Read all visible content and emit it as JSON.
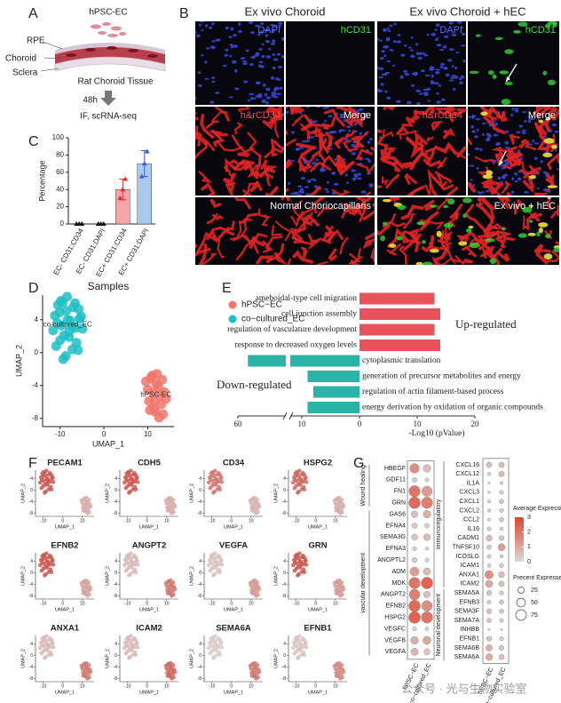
{
  "panel_a": {
    "letter": "A",
    "cell_label": "hPSC-EC",
    "layers": [
      "RPE",
      "Choroid",
      "Sclera"
    ],
    "tissue": "Rat Choroid Tissue",
    "time": "48h",
    "assay": "IF, scRNA-seq"
  },
  "panel_b": {
    "letter": "B",
    "headers": [
      "Ex vivo Choroid",
      "Ex vivo Choroid + hEC"
    ],
    "tiles": [
      {
        "label": "DAPI",
        "label_color": "#5a6cff",
        "layers": [
          "blue"
        ]
      },
      {
        "label": "hCD31",
        "label_color": "#3ddc3d",
        "layers": []
      },
      {
        "label": "DAPI",
        "label_color": "#5a6cff",
        "layers": [
          "blue"
        ]
      },
      {
        "label": "hCD31",
        "label_color": "#3ddc3d",
        "layers": [
          "green"
        ]
      },
      {
        "label": "h&rCD34",
        "label_color": "#ff4a4a",
        "layers": [
          "red"
        ]
      },
      {
        "label": "Merge",
        "label_color": "#ffffff",
        "layers": [
          "blue",
          "red"
        ]
      },
      {
        "label": "h&rCD34",
        "label_color": "#ff4a4a",
        "layers": [
          "red"
        ]
      },
      {
        "label": "Merge",
        "label_color": "#ffffff",
        "layers": [
          "blue",
          "red",
          "yellow"
        ]
      },
      {
        "label": "Normal Choriocapillaris",
        "label_color": "#ffffff",
        "layers": [
          "red"
        ]
      },
      {
        "label": "Ex vivo + hEC",
        "label_color": "#ffffff",
        "layers": [
          "red",
          "yellow",
          "green"
        ]
      }
    ]
  },
  "chart_data": [
    {
      "type": "bar",
      "panel": "C",
      "ylabel": "Percentage",
      "categories": [
        "EC- CD31:CD34",
        "EC- CD31:DAPI",
        "EC+ CD31:CD34",
        "EC+ CD31:DAPI"
      ],
      "values": [
        0,
        0,
        40,
        70
      ],
      "errors": [
        0,
        0,
        12,
        15
      ],
      "points": [
        [
          0,
          0,
          0
        ],
        [
          0,
          0,
          0
        ],
        [
          30,
          40,
          52
        ],
        [
          55,
          70,
          84
        ]
      ],
      "colors": [
        "#f4a5a5",
        "#f4a5a5",
        "#f4a5a5",
        "#a9c9ee"
      ],
      "point_colors": [
        "#111111",
        "#111111",
        "#e03030",
        "#3a5fd0"
      ],
      "ylim": [
        0,
        100
      ],
      "yticks": [
        0,
        20,
        40,
        60,
        80,
        100
      ]
    },
    {
      "type": "scatter",
      "panel": "D",
      "title": "Samples",
      "xlabel": "UMAP_1",
      "ylabel": "UMAP_2",
      "xlim": [
        -14,
        16
      ],
      "ylim": [
        -9,
        7
      ],
      "xticks": [
        -10,
        0,
        10
      ],
      "yticks": [
        -8,
        -4,
        0,
        4
      ],
      "legend": "right",
      "cluster_labels": [
        "hPSC-EC",
        "co-cultured_EC"
      ],
      "series": [
        {
          "name": "hPSC−EC",
          "color": "#f0766b",
          "x": [
            9.6,
            10.3,
            11.0,
            11.7,
            12.4,
            13.1,
            13.8,
            10.0,
            10.7,
            11.4,
            12.1,
            12.8,
            13.5,
            14.2,
            10.5,
            11.2,
            11.9,
            12.6,
            13.3,
            11.5
          ],
          "y": [
            -3.5,
            -5.9,
            -2.8,
            -7.2,
            -4.1,
            -6.3,
            -4.8,
            -4.5,
            -3.1,
            -6.8,
            -2.6,
            -5.2,
            -7.5,
            -5.6,
            -7.0,
            -4.9,
            -3.8,
            -7.9,
            -3.3,
            -6.0
          ]
        },
        {
          "name": "co−cultured_EC",
          "color": "#1fbfc4",
          "x": [
            -11.2,
            -10.5,
            -9.8,
            -9.1,
            -8.4,
            -7.7,
            -7.0,
            -6.3,
            -5.6,
            -4.9,
            -11.6,
            -10.9,
            -10.1,
            -9.4,
            -8.7,
            -8.0,
            -7.3,
            -6.6,
            -5.9,
            -5.2,
            -10.7,
            -10.0,
            -9.3,
            -8.6,
            -7.9,
            -7.2,
            -6.5,
            -5.8,
            -9.7,
            -8.3
          ],
          "y": [
            4.5,
            5.8,
            6.3,
            2.1,
            6.8,
            3.9,
            5.5,
            1.2,
            4.1,
            2.9,
            2.7,
            0.8,
            4.9,
            6.1,
            -0.4,
            1.9,
            3.2,
            6.0,
            0.3,
            4.4,
            3.6,
            1.5,
            -0.8,
            5.1,
            2.6,
            0.4,
            3.0,
            5.3,
            3.3,
            4.0
          ]
        }
      ]
    },
    {
      "type": "hbar",
      "panel": "E",
      "xlabel": "-Log10 (pValue)",
      "categories": [
        "ameboidal-type cell migration",
        "cell junction assembly",
        "regulation of vasculature development",
        "response to decreased oxygen levels",
        "cytoplasmic translation",
        "generation of precursor metabolites and energy",
        "regulation of actin filament-based process",
        "energy derivation by oxidation of organic compounds"
      ],
      "values": [
        13,
        14,
        13,
        14,
        -50,
        -9,
        -8,
        -9
      ],
      "color_up": "#e8525a",
      "color_down": "#2ab3a6",
      "annotations": [
        "Up-regulated",
        "Down-regulated"
      ],
      "xlim": [
        -60,
        20
      ],
      "axis_break": -12,
      "xticks": [
        {
          "value": -60,
          "label": "60"
        },
        {
          "value": -10,
          "label": "10"
        },
        0,
        10,
        20
      ]
    },
    {
      "type": "feature_umap",
      "panel": "F",
      "xlabel": "UMAP_1",
      "ylabel": "UMAP_2",
      "xlim": [
        -14,
        16
      ],
      "ylim": [
        -9,
        7
      ],
      "xticks": [
        -10,
        0,
        10
      ],
      "yticks": [
        -8,
        -4,
        0,
        4
      ],
      "colors": [
        "#dcdcdc",
        "#c8372d"
      ],
      "colorlim": [
        0,
        1
      ],
      "genes": [
        {
          "name": "PECAM1",
          "expression": [
            0.3,
            0.8
          ]
        },
        {
          "name": "CDH5",
          "expression": [
            0.3,
            0.8
          ]
        },
        {
          "name": "CD34",
          "expression": [
            0.25,
            0.6
          ]
        },
        {
          "name": "HSPG2",
          "expression": [
            0.3,
            0.7
          ]
        },
        {
          "name": "EFNB2",
          "expression": [
            0.35,
            0.8
          ]
        },
        {
          "name": "ANGPT2",
          "expression": [
            0.6,
            0.2
          ]
        },
        {
          "name": "VEGFA",
          "expression": [
            0.4,
            0.15
          ]
        },
        {
          "name": "GRN",
          "expression": [
            0.4,
            0.8
          ]
        },
        {
          "name": "ANXA1",
          "expression": [
            0.6,
            0.2
          ]
        },
        {
          "name": "ICAM2",
          "expression": [
            0.7,
            0.2
          ]
        },
        {
          "name": "SEMA6A",
          "expression": [
            0.6,
            0.1
          ]
        },
        {
          "name": "EFNB1",
          "expression": [
            0.5,
            0.15
          ]
        }
      ]
    },
    {
      "type": "dotplot",
      "panel": "G",
      "samples": [
        "hPSC−EC",
        "co−cultured_EC"
      ],
      "color_title": "Average Expression",
      "colorlim": [
        0,
        3
      ],
      "color_ticks": [
        0,
        1,
        2,
        3
      ],
      "colors": [
        "#d9d9d9",
        "#e0452c"
      ],
      "size_title": "Precent Expressed",
      "size_ticks": [
        25,
        50,
        75
      ],
      "plots": [
        {
          "groups": [
            {
              "name": "Wound healing",
              "genes": [
                {
                  "gene": "HBEGF",
                  "expression": [
                    1.5,
                    0.5
                  ],
                  "percent": [
                    60,
                    40
                  ]
                },
                {
                  "gene": "GDF11",
                  "expression": [
                    0.3,
                    0.2
                  ],
                  "percent": [
                    15,
                    10
                  ]
                },
                {
                  "gene": "FN1",
                  "expression": [
                    2.0,
                    1.2
                  ],
                  "percent": [
                    85,
                    70
                  ]
                },
                {
                  "gene": "GRN",
                  "expression": [
                    2.2,
                    1.8
                  ],
                  "percent": [
                    90,
                    85
                  ]
                }
              ]
            },
            {
              "name": "vascular development",
              "genes": [
                {
                  "gene": "GAS6",
                  "expression": [
                    0.5,
                    0.8
                  ],
                  "percent": [
                    30,
                    40
                  ]
                },
                {
                  "gene": "EFNA4",
                  "expression": [
                    0.3,
                    0.2
                  ],
                  "percent": [
                    20,
                    15
                  ]
                },
                {
                  "gene": "SEMA3G",
                  "expression": [
                    0.4,
                    0.6
                  ],
                  "percent": [
                    25,
                    30
                  ]
                },
                {
                  "gene": "EFNA3",
                  "expression": [
                    0.2,
                    0.1
                  ],
                  "percent": [
                    12,
                    8
                  ]
                },
                {
                  "gene": "ANGPTL2",
                  "expression": [
                    0.3,
                    0.2
                  ],
                  "percent": [
                    18,
                    12
                  ]
                },
                {
                  "gene": "ADM",
                  "expression": [
                    1.2,
                    0.6
                  ],
                  "percent": [
                    55,
                    35
                  ]
                },
                {
                  "gene": "MDK",
                  "expression": [
                    2.0,
                    2.4
                  ],
                  "percent": [
                    85,
                    90
                  ]
                },
                {
                  "gene": "ANGPT2",
                  "expression": [
                    1.8,
                    0.5
                  ],
                  "percent": [
                    75,
                    30
                  ]
                },
                {
                  "gene": "EFNB2",
                  "expression": [
                    2.2,
                    1.5
                  ],
                  "percent": [
                    90,
                    75
                  ]
                },
                {
                  "gene": "HSPG2",
                  "expression": [
                    2.4,
                    2.0
                  ],
                  "percent": [
                    92,
                    88
                  ]
                },
                {
                  "gene": "VEGFC",
                  "expression": [
                    0.2,
                    0.1
                  ],
                  "percent": [
                    10,
                    8
                  ]
                },
                {
                  "gene": "VEGFB",
                  "expression": [
                    0.8,
                    1.0
                  ],
                  "percent": [
                    40,
                    45
                  ]
                },
                {
                  "gene": "VEGFA",
                  "expression": [
                    0.7,
                    0.4
                  ],
                  "percent": [
                    35,
                    25
                  ]
                }
              ]
            }
          ]
        },
        {
          "groups": [
            {
              "name": "Immunoregulatory",
              "genes": [
                {
                  "gene": "CXCL16",
                  "expression": [
                    0.5,
                    0.6
                  ],
                  "percent": [
                    30,
                    30
                  ]
                },
                {
                  "gene": "CXCL12",
                  "expression": [
                    0.2,
                    0.6
                  ],
                  "percent": [
                    10,
                    30
                  ]
                },
                {
                  "gene": "IL1A",
                  "expression": [
                    0.1,
                    0.2
                  ],
                  "percent": [
                    5,
                    10
                  ]
                },
                {
                  "gene": "CXCL3",
                  "expression": [
                    0.1,
                    0.3
                  ],
                  "percent": [
                    6,
                    15
                  ]
                },
                {
                  "gene": "CXCL1",
                  "expression": [
                    0.2,
                    0.4
                  ],
                  "percent": [
                    10,
                    20
                  ]
                },
                {
                  "gene": "CXCL2",
                  "expression": [
                    0.2,
                    0.3
                  ],
                  "percent": [
                    10,
                    15
                  ]
                },
                {
                  "gene": "CCL2",
                  "expression": [
                    0.1,
                    0.4
                  ],
                  "percent": [
                    8,
                    20
                  ]
                },
                {
                  "gene": "IL16",
                  "expression": [
                    0.3,
                    0.2
                  ],
                  "percent": [
                    15,
                    10
                  ]
                },
                {
                  "gene": "CADM1",
                  "expression": [
                    0.6,
                    0.4
                  ],
                  "percent": [
                    35,
                    25
                  ]
                },
                {
                  "gene": "TNFSF10",
                  "expression": [
                    0.4,
                    1.2
                  ],
                  "percent": [
                    20,
                    50
                  ]
                },
                {
                  "gene": "ICOSLG",
                  "expression": [
                    0.3,
                    0.2
                  ],
                  "percent": [
                    15,
                    10
                  ]
                },
                {
                  "gene": "ICAM1",
                  "expression": [
                    0.2,
                    0.3
                  ],
                  "percent": [
                    12,
                    18
                  ]
                },
                {
                  "gene": "ANXA1",
                  "expression": [
                    1.5,
                    0.6
                  ],
                  "percent": [
                    65,
                    35
                  ]
                },
                {
                  "gene": "ICAM2",
                  "expression": [
                    1.0,
                    0.5
                  ],
                  "percent": [
                    50,
                    30
                  ]
                }
              ]
            },
            {
              "name": "Neuronal development",
              "genes": [
                {
                  "gene": "SEMA5A",
                  "expression": [
                    0.4,
                    0.3
                  ],
                  "percent": [
                    25,
                    18
                  ]
                },
                {
                  "gene": "EFNB3",
                  "expression": [
                    0.3,
                    0.4
                  ],
                  "percent": [
                    15,
                    20
                  ]
                },
                {
                  "gene": "SEMA3F",
                  "expression": [
                    0.5,
                    0.4
                  ],
                  "percent": [
                    25,
                    20
                  ]
                },
                {
                  "gene": "SEMA7A",
                  "expression": [
                    0.4,
                    0.3
                  ],
                  "percent": [
                    20,
                    15
                  ]
                },
                {
                  "gene": "INHBB",
                  "expression": [
                    0.1,
                    0.1
                  ],
                  "percent": [
                    5,
                    5
                  ]
                },
                {
                  "gene": "EFNB1",
                  "expression": [
                    0.5,
                    0.3
                  ],
                  "percent": [
                    25,
                    18
                  ]
                },
                {
                  "gene": "SEMA6B",
                  "expression": [
                    0.8,
                    0.4
                  ],
                  "percent": [
                    40,
                    25
                  ]
                },
                {
                  "gene": "SEMA6A",
                  "expression": [
                    0.9,
                    0.5
                  ],
                  "percent": [
                    45,
                    28
                  ]
                }
              ]
            }
          ]
        }
      ]
    }
  ],
  "watermark": "公众号 · 光与生物实验室"
}
